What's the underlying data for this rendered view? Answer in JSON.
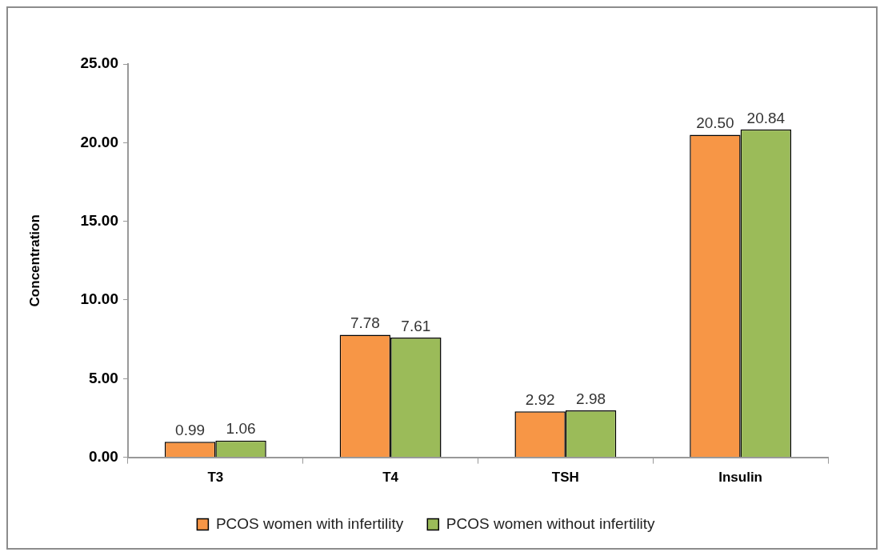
{
  "chart_data": {
    "type": "bar",
    "categories": [
      "T3",
      "T4",
      "TSH",
      "Insulin"
    ],
    "series": [
      {
        "name": "PCOS women with infertility",
        "color": "#f79646",
        "values": [
          0.99,
          7.78,
          2.92,
          20.5
        ],
        "value_labels": [
          "0.99",
          "7.78",
          "2.92",
          "20.50"
        ]
      },
      {
        "name": "PCOS women without infertility",
        "color": "#9bbb59",
        "values": [
          1.06,
          7.61,
          2.98,
          20.84
        ],
        "value_labels": [
          "1.06",
          "7.61",
          "2.98",
          "20.84"
        ]
      }
    ],
    "ylabel": "Concentration",
    "ylim": [
      0,
      25
    ],
    "yticks": [
      {
        "value": 0,
        "label": "0.00"
      },
      {
        "value": 5,
        "label": "5.00"
      },
      {
        "value": 10,
        "label": "10.00"
      },
      {
        "value": 15,
        "label": "15.00"
      },
      {
        "value": 20,
        "label": "20.00"
      },
      {
        "value": 25,
        "label": "25.00"
      }
    ],
    "legend": "bottom",
    "grid": false
  }
}
